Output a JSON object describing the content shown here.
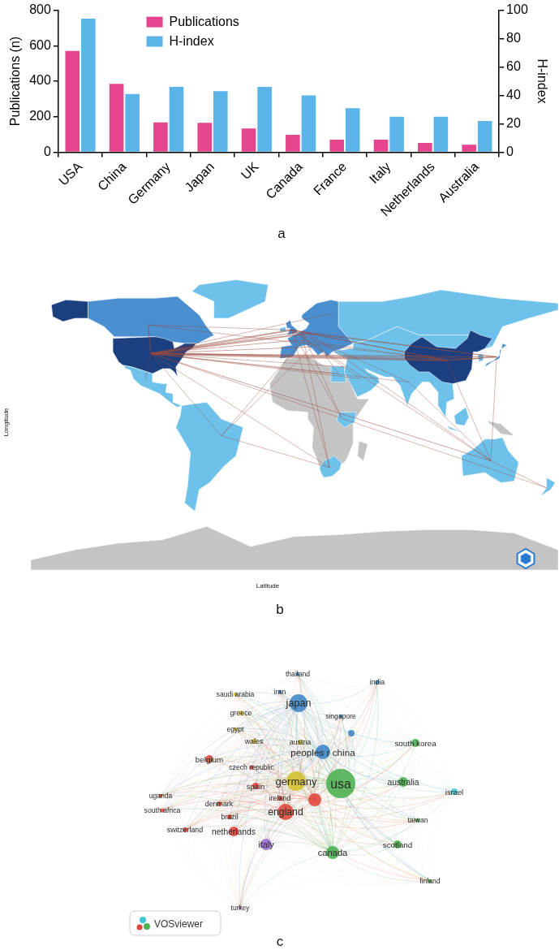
{
  "chart_data": {
    "type": "bar",
    "panel": "a",
    "categories": [
      "USA",
      "China",
      "Germany",
      "Japan",
      "UK",
      "Canada",
      "France",
      "Italy",
      "Netherlands",
      "Australia"
    ],
    "series": [
      {
        "name": "Publications",
        "color": "#e5458c",
        "values": [
          570,
          385,
          168,
          165,
          133,
          98,
          70,
          70,
          52,
          42
        ]
      },
      {
        "name": "H-index",
        "color": "#5ab4e8",
        "axis": "y2",
        "values": [
          94,
          41,
          46,
          43,
          46,
          40,
          31,
          25,
          25,
          22
        ]
      }
    ],
    "ylabel": "Publications (n)",
    "y2label": "H-index",
    "ylim": [
      0,
      800
    ],
    "yticks": [
      0,
      200,
      400,
      600,
      800
    ],
    "y2lim": [
      0,
      100
    ],
    "y2ticks": [
      0,
      20,
      40,
      60,
      80,
      100
    ],
    "grid": false,
    "legend": "top"
  },
  "map": {
    "panel": "b",
    "x_label": "Latitude",
    "y_label": "Longitude"
  },
  "network": {
    "panel": "c",
    "logo": "VOSviewer",
    "nodes": [
      {
        "label": "usa",
        "color": "#4caf50",
        "weight": 576
      },
      {
        "label": "peoples r china",
        "color": "#3d85c6",
        "weight": 144
      },
      {
        "label": "japan",
        "color": "#3d85c6",
        "weight": 215
      },
      {
        "label": "germany",
        "color": "#d4c22e",
        "weight": 256
      },
      {
        "label": "england",
        "color": "#e0443a",
        "weight": 178
      },
      {
        "label": "canada",
        "color": "#4caf50",
        "weight": 114
      },
      {
        "label": null,
        "color": "#e0443a",
        "weight": 114
      },
      {
        "label": "italy",
        "color": "#9a6bd0",
        "weight": 87
      },
      {
        "label": "netherlands",
        "color": "#e0443a",
        "weight": 64
      },
      {
        "label": "australia",
        "color": "#4caf50",
        "weight": 64
      },
      {
        "label": "scotland",
        "color": "#4caf50",
        "weight": 44
      },
      {
        "label": "south korea",
        "color": "#4caf50",
        "weight": 44
      },
      {
        "label": "belgium",
        "color": "#e0443a",
        "weight": 44
      },
      {
        "label": "spain",
        "color": "#e0443a",
        "weight": 28
      },
      {
        "label": "israel",
        "color": "#3ec7d1",
        "weight": 28
      },
      {
        "label": "denmark",
        "color": "#e0443a",
        "weight": 16
      },
      {
        "label": "ireland",
        "color": "#e0443a",
        "weight": 16
      },
      {
        "label": "brazil",
        "color": "#e0443a",
        "weight": 16
      },
      {
        "label": "switzerland",
        "color": "#e0443a",
        "weight": 16
      },
      {
        "label": "austria",
        "color": "#d4c22e",
        "weight": 16
      },
      {
        "label": "wales",
        "color": "#d4c22e",
        "weight": 16
      },
      {
        "label": "greece",
        "color": "#d4c22e",
        "weight": 16
      },
      {
        "label": "czech republic",
        "color": "#e0443a",
        "weight": 12
      },
      {
        "label": "egypt",
        "color": "#d4c22e",
        "weight": 9
      },
      {
        "label": "saudi arabia",
        "color": "#d4c22e",
        "weight": 9
      },
      {
        "label": "iran",
        "color": "#3d85c6",
        "weight": 9
      },
      {
        "label": "thailand",
        "color": "#3d85c6",
        "weight": 9
      },
      {
        "label": "india",
        "color": "#3d85c6",
        "weight": 12
      },
      {
        "label": "singapore",
        "color": "#3d85c6",
        "weight": 9
      },
      {
        "label": "taiwan",
        "color": "#4caf50",
        "weight": 12
      },
      {
        "label": "finland",
        "color": "#4caf50",
        "weight": 9
      },
      {
        "label": "uganda",
        "color": "#e0443a",
        "weight": 9
      },
      {
        "label": "south africa",
        "color": "#e0443a",
        "weight": 12
      },
      {
        "label": "turkey",
        "color": "#9a6bd0",
        "weight": 7
      },
      {
        "label": null,
        "color": "#3d85c6",
        "weight": 28
      }
    ]
  }
}
